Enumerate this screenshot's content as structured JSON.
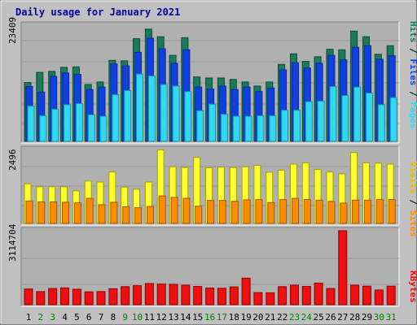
{
  "title": "Daily usage for January 2021",
  "colors": {
    "background": "#c0c0c0",
    "panel": "#b0b0b0",
    "hits": "#1a7a5a",
    "files": "#1040e0",
    "pages": "#30d8f0",
    "visits": "#ffff30",
    "sites": "#ff8c00",
    "kbytes": "#ee1010",
    "day_normal": "#000000",
    "day_weekend": "#008000"
  },
  "legend": {
    "pages": "Pages",
    "files": "Files",
    "hits": "Hits",
    "sites": "Sites",
    "visits": "Visits",
    "kbytes": "KBytes",
    "separator": " / "
  },
  "chart_data": {
    "type": "bar",
    "categories": [
      "1",
      "2",
      "3",
      "4",
      "5",
      "6",
      "7",
      "8",
      "9",
      "10",
      "11",
      "12",
      "13",
      "14",
      "15",
      "16",
      "17",
      "18",
      "19",
      "20",
      "21",
      "22",
      "23",
      "24",
      "25",
      "26",
      "27",
      "28",
      "29",
      "30",
      "31"
    ],
    "weekend_days": [
      "2",
      "3",
      "9",
      "10",
      "16",
      "17",
      "23",
      "24",
      "30",
      "31"
    ],
    "panels": [
      {
        "name": "hits-files-pages",
        "ymax_label": "23409",
        "ymax": 23409,
        "series": [
          {
            "name": "Hits",
            "values": [
              11700,
              13700,
              13900,
              14700,
              14800,
              11300,
              11800,
              16100,
              16000,
              20400,
              22300,
              20800,
              17100,
              20600,
              12800,
              12600,
              12600,
              12300,
              11800,
              11000,
              11800,
              15300,
              17400,
              15900,
              16800,
              18300,
              18200,
              21900,
              20800,
              17300,
              19000
            ]
          },
          {
            "name": "Files",
            "values": [
              10900,
              9800,
              12900,
              13600,
              13300,
              10300,
              10800,
              15400,
              15000,
              17700,
              20500,
              18400,
              15500,
              18200,
              10800,
              10400,
              11000,
              10300,
              10800,
              9900,
              10600,
              14200,
              15600,
              14600,
              15500,
              17100,
              16200,
              18700,
              19000,
              16300,
              17000
            ]
          },
          {
            "name": "Pages",
            "values": [
              7000,
              5100,
              6400,
              7300,
              7500,
              5300,
              5000,
              9300,
              10100,
              13400,
              13000,
              11300,
              11000,
              9900,
              6100,
              7400,
              5400,
              5000,
              5000,
              5100,
              5100,
              6200,
              6200,
              7900,
              8000,
              10900,
              9100,
              10800,
              9600,
              7300,
              8700
            ]
          }
        ]
      },
      {
        "name": "visits-sites",
        "ymax_label": "2496",
        "ymax": 2496,
        "series": [
          {
            "name": "Visits",
            "values": [
              1310,
              1210,
              1210,
              1210,
              1080,
              1400,
              1370,
              1700,
              1200,
              1130,
              1370,
              2430,
              1870,
              1850,
              2180,
              1840,
              1860,
              1850,
              1870,
              1920,
              1690,
              1760,
              1960,
              2000,
              1780,
              1700,
              1640,
              2340,
              2000,
              1990,
              1960
            ]
          },
          {
            "name": "Sites",
            "values": [
              740,
              710,
              710,
              700,
              680,
              830,
              620,
              700,
              550,
              520,
              560,
              910,
              860,
              830,
              570,
              760,
              760,
              730,
              780,
              790,
              690,
              790,
              830,
              790,
              770,
              730,
              670,
              770,
              770,
              790,
              790
            ]
          }
        ]
      },
      {
        "name": "kbytes",
        "ymax_label": "3114704",
        "ymax": 3114704,
        "series": [
          {
            "name": "KBytes",
            "values": [
              660000,
              550000,
              680000,
              710000,
              650000,
              540000,
              550000,
              670000,
              760000,
              800000,
              890000,
              870000,
              860000,
              820000,
              770000,
              700000,
              690000,
              750000,
              1120000,
              510000,
              500000,
              760000,
              820000,
              770000,
              910000,
              680000,
              3114704,
              820000,
              780000,
              620000,
              780000
            ]
          }
        ]
      }
    ]
  }
}
